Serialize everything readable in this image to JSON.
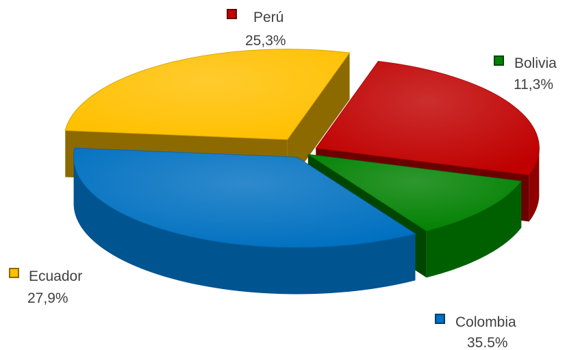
{
  "chart_data": {
    "type": "pie",
    "title": "",
    "categories": [
      "Perú",
      "Bolivia",
      "Colombia",
      "Ecuador"
    ],
    "values": [
      25.3,
      11.3,
      35.5,
      27.9
    ],
    "value_labels": [
      "25,3%",
      "11,3%",
      "35.5%",
      "27,9%"
    ],
    "unit": "%",
    "style": "3d-exploded",
    "legend": "labels-with-swatches-outside-slices",
    "colors": [
      "#C00000",
      "#008000",
      "#0070C0",
      "#FFC000"
    ]
  }
}
